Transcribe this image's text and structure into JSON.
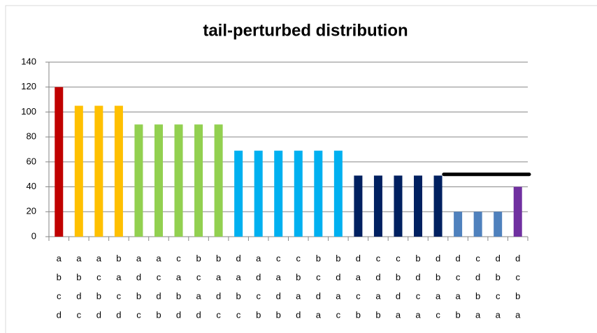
{
  "chart_data": {
    "type": "bar",
    "title": "tail-perturbed distribution",
    "categories": [
      [
        "a",
        "b",
        "c",
        "d"
      ],
      [
        "a",
        "b",
        "d",
        "c"
      ],
      [
        "a",
        "c",
        "b",
        "d"
      ],
      [
        "b",
        "a",
        "c",
        "d"
      ],
      [
        "a",
        "d",
        "b",
        "c"
      ],
      [
        "a",
        "c",
        "d",
        "b"
      ],
      [
        "c",
        "a",
        "b",
        "d"
      ],
      [
        "b",
        "c",
        "a",
        "d"
      ],
      [
        "b",
        "a",
        "d",
        "c"
      ],
      [
        "d",
        "a",
        "b",
        "c"
      ],
      [
        "a",
        "d",
        "c",
        "b"
      ],
      [
        "c",
        "a",
        "d",
        "b"
      ],
      [
        "c",
        "b",
        "a",
        "d"
      ],
      [
        "b",
        "c",
        "d",
        "a"
      ],
      [
        "b",
        "d",
        "a",
        "c"
      ],
      [
        "d",
        "a",
        "c",
        "b"
      ],
      [
        "c",
        "d",
        "a",
        "b"
      ],
      [
        "c",
        "b",
        "d",
        "a"
      ],
      [
        "b",
        "d",
        "c",
        "a"
      ],
      [
        "d",
        "b",
        "a",
        "c"
      ],
      [
        "d",
        "c",
        "a",
        "b"
      ],
      [
        "c",
        "d",
        "b",
        "a"
      ],
      [
        "d",
        "b",
        "c",
        "a"
      ],
      [
        "d",
        "c",
        "b",
        "a"
      ]
    ],
    "values": [
      120,
      105,
      105,
      105,
      90,
      90,
      90,
      90,
      90,
      69,
      69,
      69,
      69,
      69,
      69,
      49,
      49,
      49,
      49,
      49,
      20,
      20,
      20,
      40
    ],
    "colors": [
      "#c00000",
      "#ffc000",
      "#ffc000",
      "#ffc000",
      "#92d050",
      "#92d050",
      "#92d050",
      "#92d050",
      "#92d050",
      "#00b0f0",
      "#00b0f0",
      "#00b0f0",
      "#00b0f0",
      "#00b0f0",
      "#00b0f0",
      "#002060",
      "#002060",
      "#002060",
      "#002060",
      "#002060",
      "#4f81bd",
      "#4f81bd",
      "#4f81bd",
      "#7030a0"
    ],
    "threshold": 50,
    "ylim": [
      0,
      140
    ],
    "yticks": [
      0,
      20,
      40,
      60,
      80,
      100,
      120,
      140
    ],
    "grid": true
  }
}
